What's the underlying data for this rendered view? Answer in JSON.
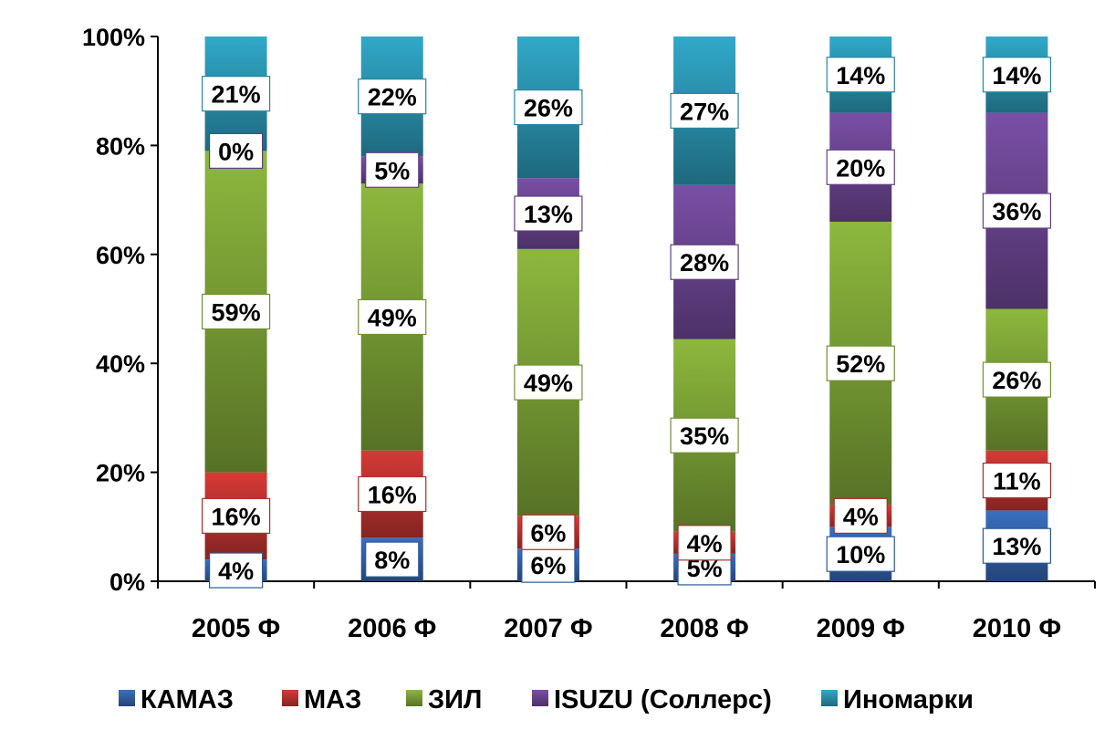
{
  "chart_data": {
    "type": "bar",
    "stacked": "percent",
    "categories": [
      "2005 Ф",
      "2006 Ф",
      "2007 Ф",
      "2008 Ф",
      "2009 Ф",
      "2010 Ф"
    ],
    "series": [
      {
        "name": "КАМАЗ",
        "color": "#3a6fc0",
        "values": [
          4,
          8,
          6,
          5,
          10,
          13
        ],
        "labels": [
          "4%",
          "8%",
          "6%",
          "5%",
          "10%",
          "13%"
        ]
      },
      {
        "name": "МАЗ",
        "color": "#d63a36",
        "values": [
          16,
          16,
          6,
          4,
          4,
          11
        ],
        "labels": [
          "16%",
          "16%",
          "6%",
          "4%",
          "4%",
          "11%"
        ]
      },
      {
        "name": "ЗИЛ",
        "color": "#8db83e",
        "values": [
          59,
          49,
          49,
          35,
          52,
          26
        ],
        "labels": [
          "59%",
          "49%",
          "49%",
          "35%",
          "52%",
          "26%"
        ]
      },
      {
        "name": "ISUZU (Соллерс)",
        "color": "#7a4fa6",
        "values": [
          0,
          5,
          13,
          28,
          20,
          36
        ],
        "labels": [
          "0%",
          "5%",
          "13%",
          "28%",
          "20%",
          "36%"
        ]
      },
      {
        "name": "Иномарки",
        "color": "#31a9c9",
        "values": [
          21,
          22,
          26,
          27,
          14,
          14
        ],
        "labels": [
          "21%",
          "22%",
          "26%",
          "27%",
          "14%",
          "14%"
        ]
      }
    ],
    "yticks": [
      "0%",
      "20%",
      "40%",
      "60%",
      "80%",
      "100%"
    ],
    "ylim": [
      0,
      100
    ],
    "grid": false,
    "legend": "bottom"
  }
}
